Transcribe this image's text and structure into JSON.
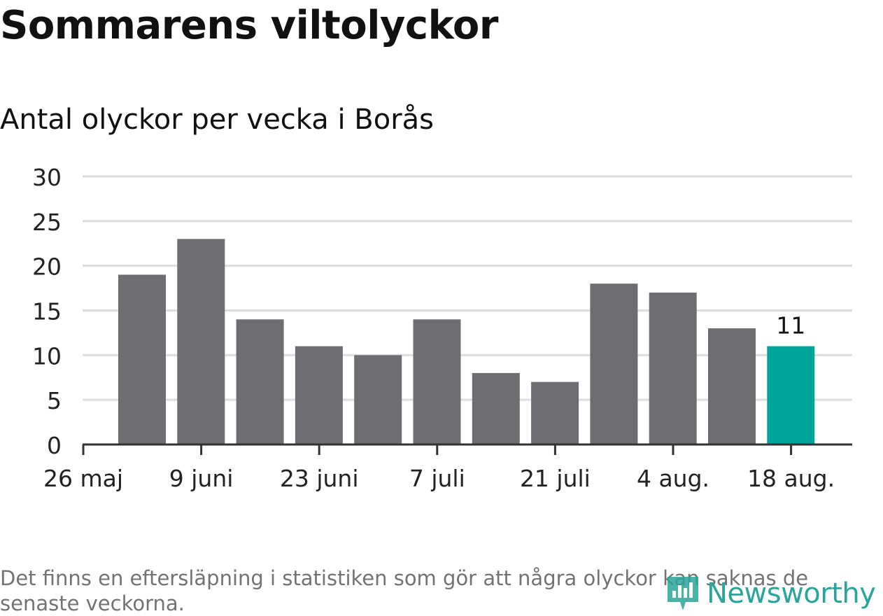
{
  "header": {
    "title": "Sommarens viltolyckor",
    "subtitle": "Antal olyckor per vecka i Borås"
  },
  "chart_data": {
    "type": "bar",
    "x_ticks": [
      "26 maj",
      "9 juni",
      "23 juni",
      "7 juli",
      "21 juli",
      "4 aug.",
      "18 aug."
    ],
    "values": [
      19,
      23,
      14,
      11,
      10,
      14,
      8,
      7,
      18,
      17,
      13,
      11
    ],
    "highlight_index": 11,
    "highlight_label": "11",
    "ylim": [
      0,
      30
    ],
    "y_ticks": [
      0,
      5,
      10,
      15,
      20,
      25,
      30
    ],
    "grid": true,
    "colors": {
      "bar": "#6e6d72",
      "highlight": "#00a49a",
      "grid": "#dddddd",
      "axis": "#333333"
    }
  },
  "footer": {
    "note": "Det finns en eftersläpning i statistiken som gör att några olyckor kan saknas de senaste veckorna.",
    "logo_text": "Newsworthy",
    "logo_icon": "newsworthy-logo-icon",
    "logo_color": "#2aa59a"
  }
}
